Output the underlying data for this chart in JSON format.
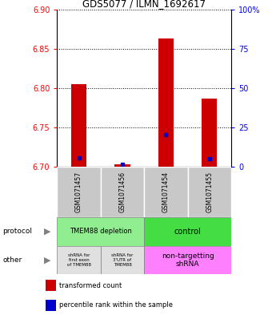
{
  "title": "GDS5077 / ILMN_1692617",
  "samples": [
    "GSM1071457",
    "GSM1071456",
    "GSM1071454",
    "GSM1071455"
  ],
  "transformed_counts": [
    6.805,
    6.703,
    6.863,
    6.787
  ],
  "percentile_ranks": [
    5.5,
    1.5,
    20.5,
    5.0
  ],
  "bar_bottom": 6.7,
  "ylim": [
    6.7,
    6.9
  ],
  "yticks_left": [
    6.7,
    6.75,
    6.8,
    6.85,
    6.9
  ],
  "yticks_right": [
    0,
    25,
    50,
    75,
    100
  ],
  "right_ylim": [
    0,
    100
  ],
  "bar_color_red": "#CC0000",
  "bar_color_blue": "#0000CC",
  "sample_bg": "#C8C8C8",
  "protocol_depletion_color": "#90EE90",
  "protocol_control_color": "#44DD44",
  "other_shrna_color": "#E0E0E0",
  "other_nontarget_color": "#FF80FF",
  "legend_red": "#CC0000",
  "legend_blue": "#0000CC"
}
